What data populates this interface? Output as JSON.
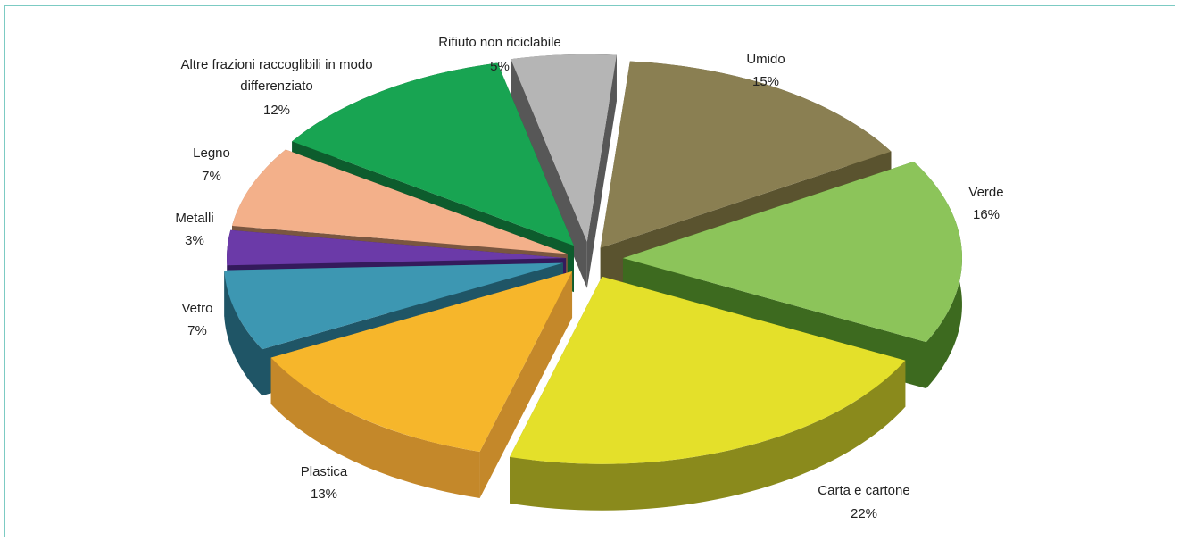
{
  "chart_data": {
    "type": "pie",
    "title": "",
    "legend": "none",
    "slices": [
      {
        "name": "Umido",
        "value": 15,
        "label": "15%",
        "color": "#8a7f52",
        "side": "#5a532f"
      },
      {
        "name": "Verde",
        "value": 16,
        "label": "16%",
        "color": "#8cc45a",
        "side": "#3d6a1f"
      },
      {
        "name": "Carta e cartone",
        "value": 22,
        "label": "22%",
        "color": "#e4e02a",
        "side": "#8a8a1c"
      },
      {
        "name": "Plastica",
        "value": 13,
        "label": "13%",
        "color": "#f6b62b",
        "side": "#c4882a"
      },
      {
        "name": "Vetro",
        "value": 7,
        "label": "7%",
        "color": "#3d97b2",
        "side": "#1f5566"
      },
      {
        "name": "Metalli",
        "value": 3,
        "label": "3%",
        "color": "#6b3aa8",
        "side": "#341a5c"
      },
      {
        "name": "Legno",
        "value": 7,
        "label": "7%",
        "color": "#f3b08a",
        "side": "#7a5640"
      },
      {
        "name": "Altre frazioni raccoglibili in modo differenziato",
        "value": 12,
        "label": "12%",
        "color": "#18a452",
        "side": "#0d5c2d"
      },
      {
        "name": "Rifiuto non riciclabile",
        "value": 5,
        "label": "5%",
        "color": "#b5b5b5",
        "side": "#575757"
      }
    ]
  }
}
